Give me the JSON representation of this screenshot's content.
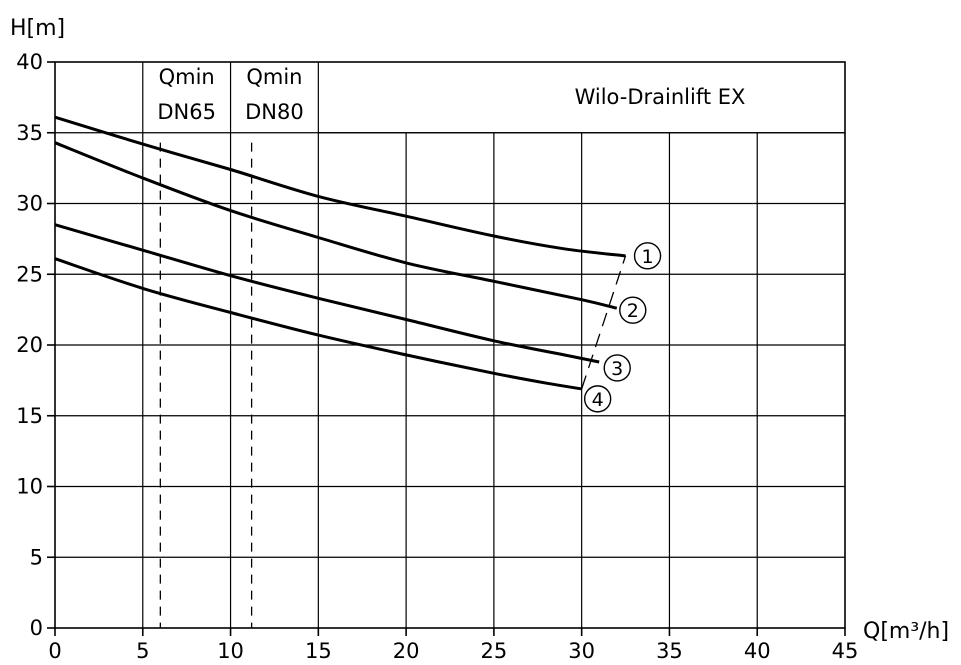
{
  "chart_data": {
    "type": "line",
    "title": "Wilo-Drainlift EX",
    "xlabel": "Q[m³/h]",
    "ylabel": "H[m]",
    "xlim": [
      0,
      45
    ],
    "ylim": [
      0,
      40
    ],
    "xticks": [
      0,
      5,
      10,
      15,
      20,
      25,
      30,
      35,
      40,
      45
    ],
    "yticks": [
      0,
      5,
      10,
      15,
      20,
      25,
      30,
      35,
      40
    ],
    "grid": true,
    "header_band_ylim": [
      35,
      40
    ],
    "qmin_lines": [
      {
        "name": "qmin-dn65",
        "x": 6.0,
        "label_top": "Qmin",
        "label_bottom": "DN65"
      },
      {
        "name": "qmin-dn80",
        "x": 11.2,
        "label_top": "Qmin",
        "label_bottom": "DN80"
      }
    ],
    "series": [
      {
        "name": "①",
        "x": [
          0,
          5,
          10,
          15,
          20,
          25,
          29,
          32.5
        ],
        "y": [
          36.1,
          34.2,
          32.4,
          30.5,
          29.1,
          27.7,
          26.8,
          26.3
        ]
      },
      {
        "name": "②",
        "x": [
          0,
          5,
          10,
          15,
          20,
          25,
          30,
          32
        ],
        "y": [
          34.3,
          31.8,
          29.5,
          27.6,
          25.8,
          24.5,
          23.2,
          22.6
        ]
      },
      {
        "name": "③",
        "x": [
          0,
          5,
          10,
          15,
          20,
          25,
          29,
          31
        ],
        "y": [
          28.5,
          26.7,
          24.9,
          23.3,
          21.8,
          20.3,
          19.3,
          18.8
        ]
      },
      {
        "name": "④",
        "x": [
          0,
          5,
          10,
          15,
          20,
          25,
          28,
          30
        ],
        "y": [
          26.1,
          24.0,
          22.3,
          20.7,
          19.3,
          18.0,
          17.3,
          16.9
        ]
      }
    ],
    "end_line_x": [
      30,
      32.5
    ]
  },
  "colors": {
    "line": "#000000",
    "grid": "#000000",
    "background": "#ffffff"
  }
}
